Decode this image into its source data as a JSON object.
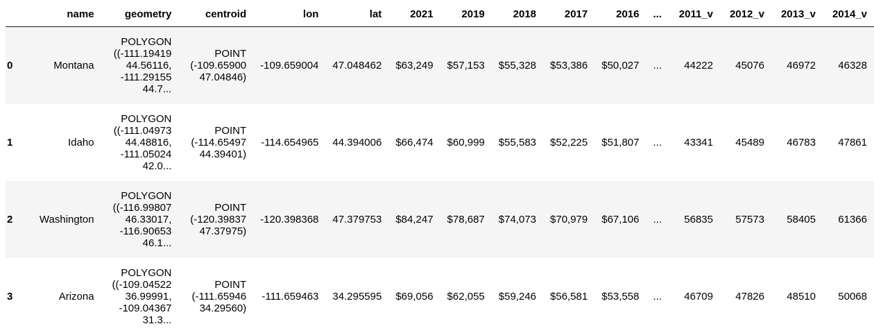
{
  "colors": {
    "background": "#ffffff",
    "row_stripe": "#f5f5f5",
    "header_border": "#1a1a1a",
    "text": "#000000"
  },
  "table": {
    "columns": [
      "",
      "name",
      "geometry",
      "centroid",
      "lon",
      "lat",
      "2021",
      "2019",
      "2018",
      "2017",
      "2016",
      "...",
      "2011_v",
      "2012_v",
      "2013_v",
      "2014_v"
    ],
    "rows": [
      {
        "index": "0",
        "name": "Montana",
        "geometry": "POLYGON ((-111.19419 44.56116, -111.29155 44.7...",
        "centroid": "POINT (-109.65900 47.04846)",
        "lon": "-109.659004",
        "lat": "47.048462",
        "y2021": "$63,249",
        "y2019": "$57,153",
        "y2018": "$55,328",
        "y2017": "$53,386",
        "y2016": "$50,027",
        "dots": "...",
        "v2011": "44222",
        "v2012": "45076",
        "v2013": "46972",
        "v2014": "46328"
      },
      {
        "index": "1",
        "name": "Idaho",
        "geometry": "POLYGON ((-111.04973 44.48816, -111.05024 42.0...",
        "centroid": "POINT (-114.65497 44.39401)",
        "lon": "-114.654965",
        "lat": "44.394006",
        "y2021": "$66,474",
        "y2019": "$60,999",
        "y2018": "$55,583",
        "y2017": "$52,225",
        "y2016": "$51,807",
        "dots": "...",
        "v2011": "43341",
        "v2012": "45489",
        "v2013": "46783",
        "v2014": "47861"
      },
      {
        "index": "2",
        "name": "Washington",
        "geometry": "POLYGON ((-116.99807 46.33017, -116.90653 46.1...",
        "centroid": "POINT (-120.39837 47.37975)",
        "lon": "-120.398368",
        "lat": "47.379753",
        "y2021": "$84,247",
        "y2019": "$78,687",
        "y2018": "$74,073",
        "y2017": "$70,979",
        "y2016": "$67,106",
        "dots": "...",
        "v2011": "56835",
        "v2012": "57573",
        "v2013": "58405",
        "v2014": "61366"
      },
      {
        "index": "3",
        "name": "Arizona",
        "geometry": "POLYGON ((-109.04522 36.99991, -109.04367 31.3...",
        "centroid": "POINT (-111.65946 34.29560)",
        "lon": "-111.659463",
        "lat": "34.295595",
        "y2021": "$69,056",
        "y2019": "$62,055",
        "y2018": "$59,246",
        "y2017": "$56,581",
        "y2016": "$53,558",
        "dots": "...",
        "v2011": "46709",
        "v2012": "47826",
        "v2013": "48510",
        "v2014": "50068"
      }
    ]
  }
}
